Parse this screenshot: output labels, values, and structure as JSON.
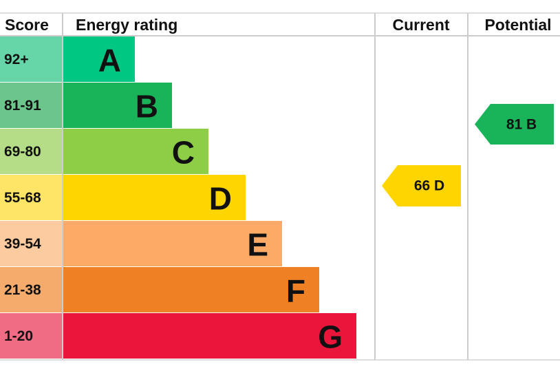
{
  "header": {
    "score": "Score",
    "energy_rating": "Energy rating",
    "current": "Current",
    "potential": "Potential"
  },
  "rows": [
    {
      "score": "92+",
      "letter": "A"
    },
    {
      "score": "81-91",
      "letter": "B"
    },
    {
      "score": "69-80",
      "letter": "C"
    },
    {
      "score": "55-68",
      "letter": "D"
    },
    {
      "score": "39-54",
      "letter": "E"
    },
    {
      "score": "21-38",
      "letter": "F"
    },
    {
      "score": "1-20",
      "letter": "G"
    }
  ],
  "current": "66 D",
  "potential": "81 B"
}
